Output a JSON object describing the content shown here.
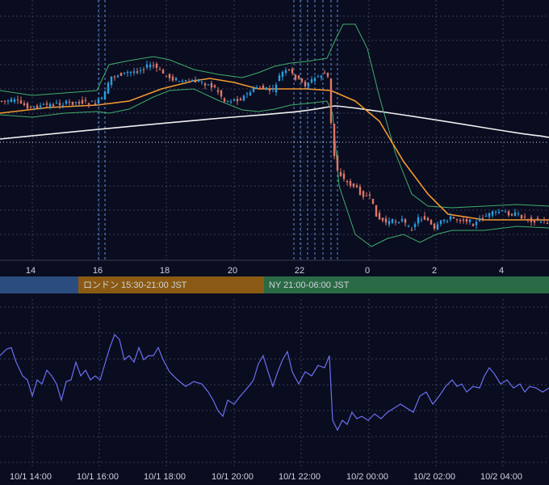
{
  "top_axis": [
    "14",
    "16",
    "18",
    "20",
    "22",
    "0",
    "2",
    "4"
  ],
  "sessions": [
    "ロンドン 15:30-21:00 JST",
    "NY 21:00-06:00 JST"
  ],
  "bottom_axis": [
    "10/1 14:00",
    "10/1 16:00",
    "10/1 18:00",
    "10/1 20:00",
    "10/1 22:00",
    "10/2 00:00",
    "10/2 02:00",
    "10/2 04:00"
  ]
}
